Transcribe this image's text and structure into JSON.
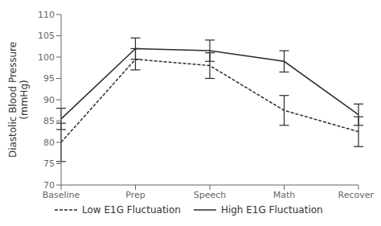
{
  "chart_data": {
    "type": "line",
    "categories": [
      "Baseline",
      "Prep",
      "Speech",
      "Math",
      "Recovery"
    ],
    "series": [
      {
        "name": "High E1G Fluctuation",
        "color": "#2b2b2b",
        "line_style": "solid",
        "values": [
          85.5,
          102.0,
          101.5,
          99.0,
          86.5
        ],
        "errors": [
          2.5,
          2.5,
          2.5,
          2.5,
          2.5
        ]
      },
      {
        "name": "Low E1G Fluctuation",
        "color": "#2b2b2b",
        "line_style": "dashed",
        "values": [
          80.0,
          99.5,
          98.0,
          87.5,
          82.5
        ],
        "errors": [
          4.5,
          2.5,
          3.0,
          3.5,
          3.5
        ]
      }
    ],
    "ylabel": "Diastolic Blood Pressure\n(mmHg)",
    "ylim": [
      70,
      110
    ],
    "yticks": [
      70,
      75,
      80,
      85,
      90,
      95,
      100,
      105,
      110
    ],
    "grid": false,
    "legend": "bottom"
  }
}
